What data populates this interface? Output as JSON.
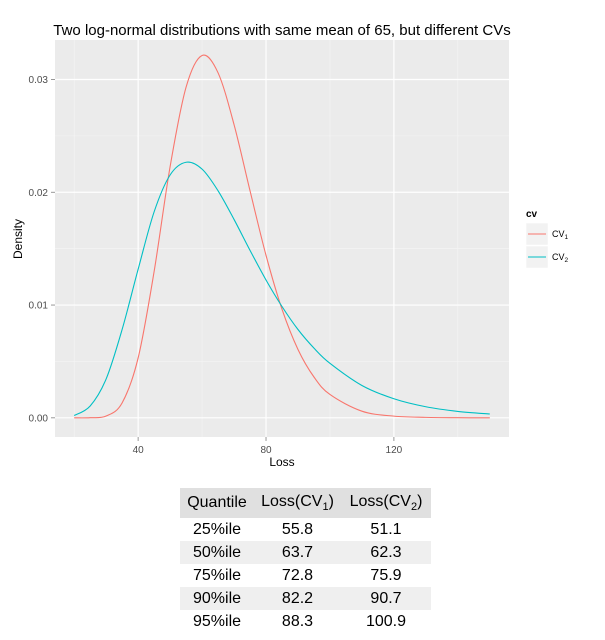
{
  "chart_data": {
    "type": "line",
    "title": "Two log-normal distributions with same mean of 65, but different CVs",
    "xlabel": "Loss",
    "ylabel": "Density",
    "xlim": [
      20,
      150
    ],
    "ylim": [
      0,
      0.0335
    ],
    "x_ticks": [
      40,
      80,
      120
    ],
    "y_ticks": [
      0.0,
      0.01,
      0.02,
      0.03
    ],
    "x_tick_labels": [
      "40",
      "80",
      "120"
    ],
    "y_tick_labels": [
      "0.00",
      "0.01",
      "0.02",
      "0.03"
    ],
    "grid": true,
    "legend": {
      "title": "cv",
      "position": "right"
    },
    "x": [
      20,
      25,
      30,
      35,
      40,
      45,
      50,
      55,
      60,
      65,
      70,
      75,
      80,
      85,
      90,
      95,
      100,
      110,
      120,
      130,
      140,
      150
    ],
    "series": [
      {
        "name": "CV",
        "subscript": "1",
        "color": "#F8766D",
        "values": [
          0.0,
          1e-05,
          0.00016,
          0.00133,
          0.00531,
          0.01297,
          0.02227,
          0.02932,
          0.03213,
          0.03059,
          0.026,
          0.02013,
          0.01441,
          0.00963,
          0.00606,
          0.00362,
          0.00207,
          0.00059,
          0.00015,
          4e-05,
          1e-05,
          0.0
        ]
      },
      {
        "name": "CV",
        "subscript": "2",
        "color": "#00BFC4",
        "values": [
          0.0002,
          0.00105,
          0.00345,
          0.00784,
          0.01317,
          0.01826,
          0.02153,
          0.02266,
          0.02205,
          0.02013,
          0.01759,
          0.01485,
          0.01222,
          0.00987,
          0.00783,
          0.00618,
          0.00483,
          0.00287,
          0.00169,
          0.00098,
          0.00057,
          0.00034
        ]
      }
    ]
  },
  "table": {
    "headers": [
      {
        "text": "Quantile",
        "sub": ""
      },
      {
        "text": "Loss(CV",
        "sub": "1",
        "suffix": ")"
      },
      {
        "text": "Loss(CV",
        "sub": "2",
        "suffix": ")"
      }
    ],
    "rows": [
      [
        "25%ile",
        "55.8",
        "51.1"
      ],
      [
        "50%ile",
        "63.7",
        "62.3"
      ],
      [
        "75%ile",
        "72.8",
        "75.9"
      ],
      [
        "90%ile",
        "82.2",
        "90.7"
      ],
      [
        "95%ile",
        "88.3",
        "100.9"
      ]
    ]
  }
}
